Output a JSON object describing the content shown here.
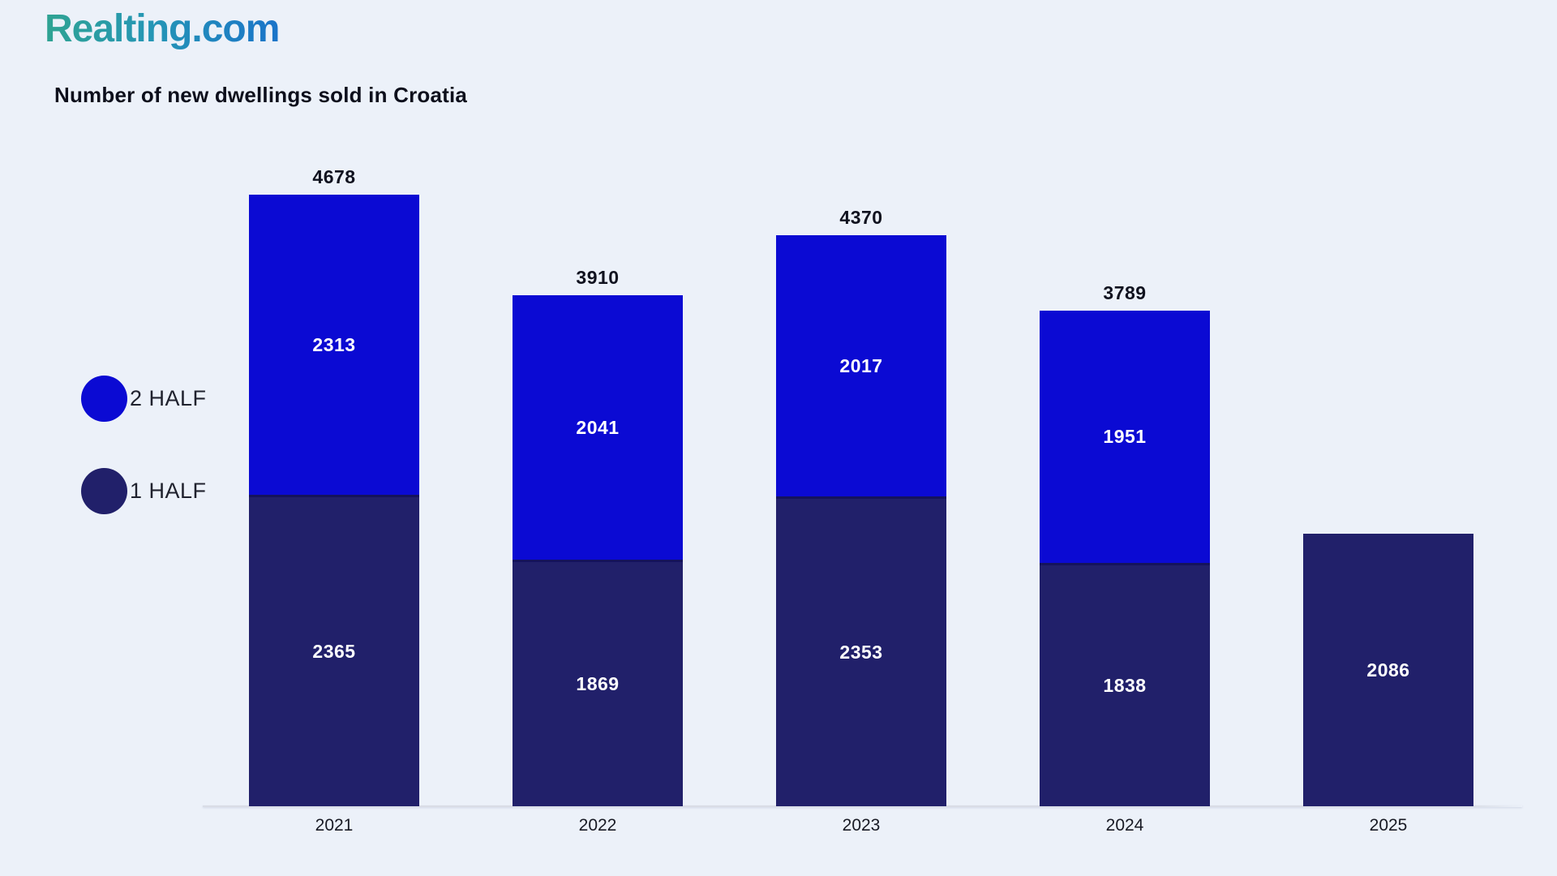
{
  "brand": {
    "name": "Realting.com"
  },
  "legend": {
    "items": [
      {
        "label": "2 HALF",
        "color": "#0b0ad3"
      },
      {
        "label": "1 HALF",
        "color": "#21206a"
      }
    ]
  },
  "chart_data": {
    "type": "bar",
    "stacked": true,
    "stack_order": "bottom-to-top",
    "title": "Number of new dwellings sold in Croatia",
    "categories": [
      "2021",
      "2022",
      "2023",
      "2024",
      "2025"
    ],
    "series": [
      {
        "name": "1 HALF",
        "color": "#21206a",
        "values": [
          2365,
          1869,
          2353,
          1838,
          2086
        ]
      },
      {
        "name": "2 HALF",
        "color": "#0b0ad3",
        "values": [
          2313,
          2041,
          2017,
          1951,
          null
        ]
      }
    ],
    "totals": [
      4678,
      3910,
      4370,
      3789,
      null
    ],
    "value_labels": "inside-segments",
    "total_labels": "above-bars",
    "legend_position": "left-middle",
    "grid": false,
    "y_axis_visible": false,
    "x_axis_line": true,
    "ylim": [
      0,
      4678
    ]
  },
  "colors": {
    "background": "#ecf1f9",
    "bar_blue": "#0b0ad3",
    "bar_navy": "#21206a",
    "segment_divider": "#15135c",
    "axis_line": "#d9dde6",
    "text_dark": "#10121f",
    "label_on_bar": "#ffffff",
    "logo_gradient_start": "#2fa392",
    "logo_gradient_end": "#1b74c9"
  }
}
